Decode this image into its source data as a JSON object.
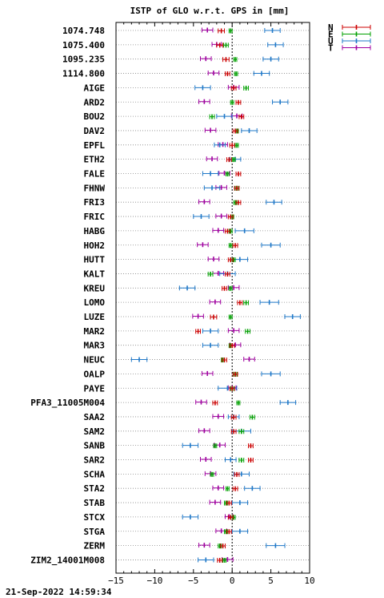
{
  "chart_data": {
    "type": "errorbar",
    "title": "ISTP of GLO w.r.t. GPS in [mm]",
    "xlim": [
      -15,
      10
    ],
    "x_ticks": [
      -15,
      -10,
      -5,
      0,
      5,
      10
    ],
    "zero_line": "dotted",
    "grid": "horizontal-dotted",
    "legend_position": "top-right",
    "series": [
      {
        "name": "N",
        "color": "#cc0000"
      },
      {
        "name": "E",
        "color": "#00a000"
      },
      {
        "name": "U",
        "color": "#1f78c8"
      },
      {
        "name": "T",
        "color": "#a000a0"
      }
    ],
    "sites": [
      {
        "name": "1074.748",
        "N": [
          -1.4,
          0.4
        ],
        "E": [
          -0.2,
          0.2
        ],
        "U": [
          5.2,
          1.0
        ],
        "T": [
          -3.2,
          0.7
        ]
      },
      {
        "name": "1075.400",
        "N": [
          -1.6,
          0.4
        ],
        "E": [
          -0.8,
          0.3
        ],
        "U": [
          5.6,
          1.0
        ],
        "T": [
          -2.0,
          0.6
        ]
      },
      {
        "name": "1095.235",
        "N": [
          -0.8,
          0.4
        ],
        "E": [
          0.4,
          0.2
        ],
        "U": [
          5.0,
          1.0
        ],
        "T": [
          -3.4,
          0.7
        ]
      },
      {
        "name": "1114.800",
        "N": [
          -0.6,
          0.3
        ],
        "E": [
          0.5,
          0.2
        ],
        "U": [
          3.8,
          1.0
        ],
        "T": [
          -2.4,
          0.7
        ]
      },
      {
        "name": "AIGE",
        "N": [
          0.2,
          0.3
        ],
        "E": [
          1.8,
          0.3
        ],
        "U": [
          -3.8,
          1.0
        ],
        "T": [
          0.2,
          0.7
        ]
      },
      {
        "name": "ARD2",
        "N": [
          0.8,
          0.3
        ],
        "E": [
          0.0,
          0.2
        ],
        "U": [
          6.2,
          1.0
        ],
        "T": [
          -3.6,
          0.7
        ]
      },
      {
        "name": "BOU2",
        "N": [
          1.2,
          0.3
        ],
        "E": [
          -2.6,
          0.3
        ],
        "U": [
          -1.0,
          1.0
        ],
        "T": [
          0.6,
          0.7
        ]
      },
      {
        "name": "DAV2",
        "N": [
          0.4,
          0.3
        ],
        "E": [
          0.6,
          0.2
        ],
        "U": [
          2.2,
          1.0
        ],
        "T": [
          -2.8,
          0.7
        ]
      },
      {
        "name": "EPFL",
        "N": [
          0.0,
          0.3
        ],
        "E": [
          0.6,
          0.2
        ],
        "U": [
          -1.6,
          0.7
        ],
        "T": [
          -1.2,
          0.6
        ]
      },
      {
        "name": "ETH2",
        "N": [
          -0.4,
          0.3
        ],
        "E": [
          0.2,
          0.2
        ],
        "U": [
          0.4,
          0.7
        ],
        "T": [
          -2.6,
          0.7
        ]
      },
      {
        "name": "FALE",
        "N": [
          0.8,
          0.3
        ],
        "E": [
          -0.6,
          0.2
        ],
        "U": [
          -2.8,
          1.0
        ],
        "T": [
          -1.0,
          0.7
        ]
      },
      {
        "name": "FHNW",
        "N": [
          0.6,
          0.3
        ],
        "E": [
          0.6,
          0.2
        ],
        "U": [
          -2.6,
          1.0
        ],
        "T": [
          -1.4,
          0.7
        ]
      },
      {
        "name": "FRI3",
        "N": [
          0.8,
          0.3
        ],
        "E": [
          0.4,
          0.2
        ],
        "U": [
          5.4,
          1.0
        ],
        "T": [
          -3.6,
          0.7
        ]
      },
      {
        "name": "FRIC",
        "N": [
          -0.2,
          0.3
        ],
        "E": [
          0.0,
          0.2
        ],
        "U": [
          -4.0,
          1.0
        ],
        "T": [
          -1.4,
          0.7
        ]
      },
      {
        "name": "HABG",
        "N": [
          -0.6,
          0.3
        ],
        "E": [
          -0.2,
          0.2
        ],
        "U": [
          1.6,
          1.2
        ],
        "T": [
          -1.8,
          0.7
        ]
      },
      {
        "name": "HOH2",
        "N": [
          0.4,
          0.3
        ],
        "E": [
          -0.2,
          0.2
        ],
        "U": [
          5.0,
          1.2
        ],
        "T": [
          -3.8,
          0.7
        ]
      },
      {
        "name": "HUTT",
        "N": [
          -0.2,
          0.3
        ],
        "E": [
          0.2,
          0.2
        ],
        "U": [
          1.0,
          1.0
        ],
        "T": [
          -2.4,
          0.7
        ]
      },
      {
        "name": "KALT",
        "N": [
          -0.6,
          0.3
        ],
        "E": [
          -2.8,
          0.3
        ],
        "U": [
          -0.6,
          1.0
        ],
        "T": [
          -1.8,
          0.7
        ]
      },
      {
        "name": "KREU",
        "N": [
          -1.0,
          0.3
        ],
        "E": [
          -0.2,
          0.2
        ],
        "U": [
          -5.8,
          1.0
        ],
        "T": [
          0.2,
          0.7
        ]
      },
      {
        "name": "LOMO",
        "N": [
          1.0,
          0.3
        ],
        "E": [
          1.8,
          0.3
        ],
        "U": [
          4.8,
          1.2
        ],
        "T": [
          -2.2,
          0.7
        ]
      },
      {
        "name": "LUZE",
        "N": [
          -2.4,
          0.4
        ],
        "E": [
          -0.2,
          0.2
        ],
        "U": [
          7.8,
          1.0
        ],
        "T": [
          -4.4,
          0.7
        ]
      },
      {
        "name": "MAR2",
        "N": [
          -4.4,
          0.3
        ],
        "E": [
          2.0,
          0.3
        ],
        "U": [
          -2.8,
          1.0
        ],
        "T": [
          0.2,
          0.7
        ]
      },
      {
        "name": "MAR3",
        "N": [
          0.0,
          0.3
        ],
        "E": [
          -0.2,
          0.2
        ],
        "U": [
          -2.8,
          1.0
        ],
        "T": [
          0.4,
          0.7
        ]
      },
      {
        "name": "NEUC",
        "N": [
          -1.0,
          0.3
        ],
        "E": [
          -1.2,
          0.2
        ],
        "U": [
          -12.0,
          1.0
        ],
        "T": [
          2.2,
          0.7
        ]
      },
      {
        "name": "OALP",
        "N": [
          0.4,
          0.3
        ],
        "E": [
          0.4,
          0.2
        ],
        "U": [
          5.0,
          1.2
        ],
        "T": [
          -3.2,
          0.7
        ]
      },
      {
        "name": "PAYE",
        "N": [
          0.0,
          0.3
        ],
        "E": [
          0.0,
          0.2
        ],
        "U": [
          -0.6,
          1.2
        ],
        "T": [
          0.0,
          0.5
        ]
      },
      {
        "name": "PFA3_11005M004",
        "N": [
          -2.2,
          0.3
        ],
        "E": [
          0.8,
          0.2
        ],
        "U": [
          7.2,
          1.0
        ],
        "T": [
          -4.0,
          0.7
        ]
      },
      {
        "name": "SAA2",
        "N": [
          0.2,
          0.3
        ],
        "E": [
          2.6,
          0.3
        ],
        "U": [
          0.2,
          0.7
        ],
        "T": [
          -1.8,
          0.7
        ]
      },
      {
        "name": "SAM2",
        "N": [
          0.2,
          0.3
        ],
        "E": [
          1.2,
          0.3
        ],
        "U": [
          1.2,
          1.2
        ],
        "T": [
          -3.6,
          0.7
        ]
      },
      {
        "name": "SANB",
        "N": [
          2.4,
          0.3
        ],
        "E": [
          -2.2,
          0.2
        ],
        "U": [
          -5.4,
          1.0
        ],
        "T": [
          -1.6,
          0.7
        ]
      },
      {
        "name": "SAR2",
        "N": [
          2.4,
          0.3
        ],
        "E": [
          1.2,
          0.3
        ],
        "U": [
          -0.2,
          0.7
        ],
        "T": [
          -3.4,
          0.7
        ]
      },
      {
        "name": "SCHA",
        "N": [
          0.6,
          0.3
        ],
        "E": [
          -2.6,
          0.2
        ],
        "U": [
          1.2,
          1.0
        ],
        "T": [
          -2.8,
          0.7
        ]
      },
      {
        "name": "STA2",
        "N": [
          0.4,
          0.3
        ],
        "E": [
          -0.6,
          0.2
        ],
        "U": [
          2.6,
          1.0
        ],
        "T": [
          -1.8,
          0.7
        ]
      },
      {
        "name": "STAB",
        "N": [
          -0.4,
          0.3
        ],
        "E": [
          -0.8,
          0.2
        ],
        "U": [
          1.0,
          1.0
        ],
        "T": [
          -2.2,
          0.7
        ]
      },
      {
        "name": "STCX",
        "N": [
          -0.2,
          0.3
        ],
        "E": [
          0.2,
          0.2
        ],
        "U": [
          -5.4,
          1.0
        ],
        "T": [
          -0.4,
          0.5
        ]
      },
      {
        "name": "STGA",
        "N": [
          -0.4,
          0.3
        ],
        "E": [
          -0.8,
          0.2
        ],
        "U": [
          1.0,
          1.0
        ],
        "T": [
          -1.4,
          0.7
        ]
      },
      {
        "name": "ZERM",
        "N": [
          -1.2,
          0.3
        ],
        "E": [
          -1.6,
          0.2
        ],
        "U": [
          5.6,
          1.2
        ],
        "T": [
          -3.6,
          0.7
        ]
      },
      {
        "name": "ZIM2_14001M008",
        "N": [
          -1.6,
          0.3
        ],
        "E": [
          -1.0,
          0.2
        ],
        "U": [
          -3.4,
          1.0
        ],
        "T": [
          -0.6,
          0.7
        ]
      }
    ]
  },
  "footer": {
    "timestamp": "21-Sep-2022 14:59:34"
  }
}
